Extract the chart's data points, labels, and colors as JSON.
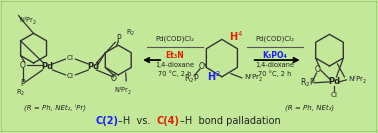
{
  "bg_color": "#c4e89a",
  "border_color": "#7ab848",
  "bottom_text_parts": [
    {
      "text": "C(2)",
      "color": "#1a1aff",
      "bold": true
    },
    {
      "text": "–H  vs.  ",
      "color": "#222222",
      "bold": false
    },
    {
      "text": "C(4)",
      "color": "#dd2200",
      "bold": true
    },
    {
      "text": "–H  bond palladation",
      "color": "#222222",
      "bold": false
    }
  ],
  "left_caption": "(R = Ph, NEt₂, ⁱPr)",
  "right_caption": "(R = Ph, NEt₂)",
  "cond_left": [
    "Pd(COD)Cl₂",
    "Et₃N",
    "1,4-dioxane",
    "70 °C, 2 h"
  ],
  "cond_right": [
    "Pd(COD)Cl₂",
    "K₃PO₄",
    "1,4-dioxane",
    "70 °C, 2 h"
  ],
  "et3n_color": "#dd2200",
  "k3po4_color": "#1a1aff",
  "text_color": "#222222",
  "pd_color": "#222222"
}
